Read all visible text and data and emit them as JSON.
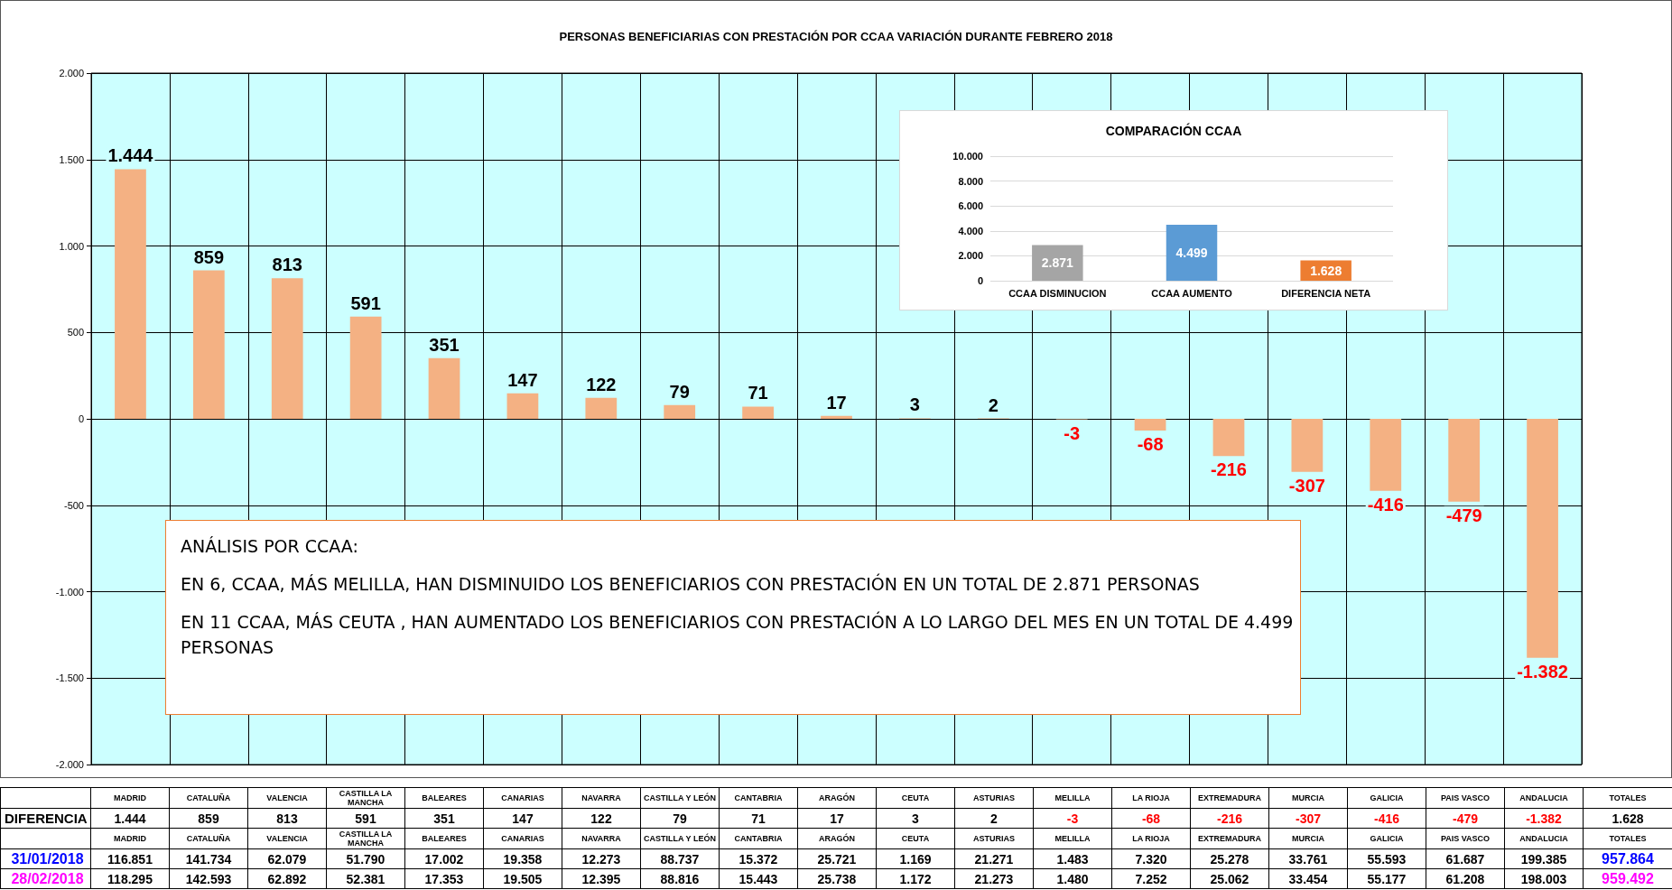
{
  "chart_data": [
    {
      "type": "bar",
      "title": "PERSONAS BENEFICIARIAS CON PRESTACIÓN POR CCAA VARIACIÓN DURANTE FEBRERO 2018",
      "categories": [
        null,
        null,
        null,
        null,
        null,
        null,
        null,
        null,
        null,
        null,
        null,
        null,
        null,
        null,
        null,
        null,
        null,
        null,
        null
      ],
      "values": [
        1444,
        859,
        813,
        591,
        351,
        147,
        122,
        79,
        71,
        17,
        3,
        2,
        -3,
        -68,
        -216,
        -307,
        -416,
        -479,
        -1382
      ],
      "value_labels": [
        "1.444",
        "859",
        "813",
        "591",
        "351",
        "147",
        "122",
        "79",
        "71",
        "17",
        "3",
        "2",
        "-3",
        "-68",
        "-216",
        "-307",
        "-416",
        "-479",
        "-1.382"
      ],
      "color": "#f4b183",
      "ylim": [
        -2000,
        2000
      ],
      "yticks": [
        {
          "value": -2000,
          "label": "-2.000"
        },
        {
          "value": -1500,
          "label": "-1.500"
        },
        {
          "value": -1000,
          "label": "-1.000"
        },
        -500,
        0,
        500,
        {
          "value": 1000,
          "label": "1.000"
        },
        {
          "value": 1500,
          "label": "1.500"
        },
        {
          "value": 2000,
          "label": "2.000"
        }
      ],
      "grid": true,
      "tick_labels": "y",
      "annotations": [
        "ANÁLISIS POR CCAA:",
        "EN 6, CCAA, MÁS MELILLA, HAN DISMINUIDO LOS BENEFICIARIOS CON PRESTACIÓN EN UN TOTAL DE 2.871 PERSONAS",
        "EN 11 CCAA, MÁS CEUTA , HAN AUMENTADO LOS BENEFICIARIOS CON PRESTACIÓN A LO LARGO DEL MES EN UN TOTAL DE 4.499 PERSONAS"
      ]
    },
    {
      "type": "bar",
      "title": "COMPARACIÓN CCAA",
      "categories": [
        "CCAA DISMINUCION",
        "CCAA AUMENTO",
        "DIFERENCIA NETA"
      ],
      "values": [
        2871,
        4499,
        1628
      ],
      "value_labels": [
        "2.871",
        "4.499",
        "1.628"
      ],
      "colors": [
        "#a5a5a5",
        "#5b9bd5",
        "#ed7d31"
      ],
      "ylim": [
        0,
        10000
      ],
      "yticks": [
        0,
        {
          "value": 2000,
          "label": "2.000"
        },
        {
          "value": 4000,
          "label": "4.000"
        },
        {
          "value": 6000,
          "label": "6.000"
        },
        {
          "value": 8000,
          "label": "8.000"
        },
        {
          "value": 10000,
          "label": "10.000"
        }
      ],
      "grid": "y"
    },
    {
      "type": "other",
      "categories": [
        "MADRID",
        "CATALUÑA",
        "VALENCIA",
        "CASTILLA LA MANCHA",
        "BALEARES",
        "CANARIAS",
        "NAVARRA",
        "CASTILLA Y LEÓN",
        "CANTABRIA",
        "ARAGÓN",
        "CEUTA",
        "ASTURIAS",
        "MELILLA",
        "LA RIOJA",
        "EXTREMADURA",
        "MURCIA",
        "GALICIA",
        "PAIS VASCO",
        "ANDALUCIA",
        "TOTALES"
      ],
      "series": [
        {
          "name": "DIFERENCIA",
          "color": "#000000",
          "values": [
            1444,
            859,
            813,
            591,
            351,
            147,
            122,
            79,
            71,
            17,
            3,
            2,
            -3,
            -68,
            -216,
            -307,
            -416,
            -479,
            -1382,
            1628
          ],
          "value_labels": [
            "1.444",
            "859",
            "813",
            "591",
            "351",
            "147",
            "122",
            "79",
            "71",
            "17",
            "3",
            "2",
            "-3",
            "-68",
            "-216",
            "-307",
            "-416",
            "-479",
            "-1.382",
            "1.628"
          ]
        },
        {
          "name": "31/01/2018",
          "color": "#0000ff",
          "values": [
            116851,
            141734,
            62079,
            51790,
            17002,
            19358,
            12273,
            88737,
            15372,
            25721,
            1169,
            21271,
            1483,
            7320,
            25278,
            33761,
            55593,
            61687,
            199385,
            957864
          ],
          "value_labels": [
            "116.851",
            "141.734",
            "62.079",
            "51.790",
            "17.002",
            "19.358",
            "12.273",
            "88.737",
            "15.372",
            "25.721",
            "1.169",
            "21.271",
            "1.483",
            "7.320",
            "25.278",
            "33.761",
            "55.593",
            "61.687",
            "199.385",
            "957.864"
          ]
        },
        {
          "name": "28/02/2018",
          "color": "#ff00ff",
          "values": [
            118295,
            142593,
            62892,
            52381,
            17353,
            19505,
            12395,
            88816,
            15443,
            25738,
            1172,
            21273,
            1480,
            7252,
            25062,
            33454,
            55177,
            61208,
            198003,
            959492
          ],
          "value_labels": [
            "118.295",
            "142.593",
            "62.892",
            "52.381",
            "17.353",
            "19.505",
            "12.395",
            "88.816",
            "15.443",
            "25.738",
            "1.172",
            "21.273",
            "1.480",
            "7.252",
            "25.062",
            "33.454",
            "55.177",
            "61.208",
            "198.003",
            "959.492"
          ]
        }
      ]
    }
  ]
}
